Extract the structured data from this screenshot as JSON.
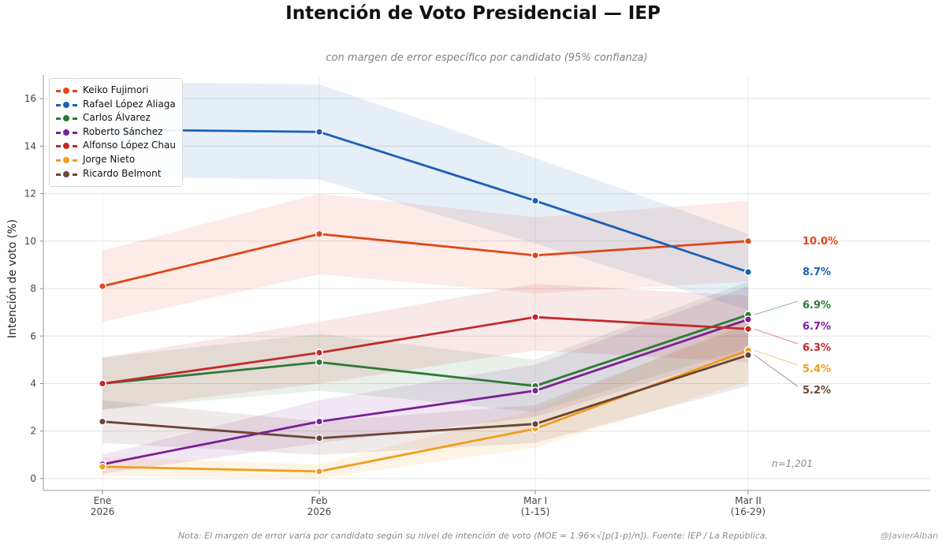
{
  "chart_data": {
    "type": "line",
    "title": "Intención de Voto Presidencial — IEP",
    "subtitle": "con margen de error específico por candidato (95% confianza)",
    "ylabel": "Intención de voto (%)",
    "xlabel": "",
    "ylim": [
      -0.5,
      17
    ],
    "yticks": [
      0,
      2,
      4,
      6,
      8,
      10,
      12,
      14,
      16
    ],
    "grid": true,
    "legend_position": "top-left",
    "categories": [
      {
        "line1": "Ene",
        "line2": "2026"
      },
      {
        "line1": "Feb",
        "line2": "2026"
      },
      {
        "line1": "Mar I",
        "line2": "(1-15)"
      },
      {
        "line1": "Mar II",
        "line2": "(16-29)"
      }
    ],
    "sample_size": 1201,
    "sample_label": "n=1,201",
    "series": [
      {
        "name": "Keiko Fujimori",
        "color": "#e0461a",
        "values": [
          8.1,
          10.3,
          9.4,
          10.0
        ],
        "moe": [
          1.5,
          1.7,
          1.6,
          1.7
        ],
        "end_label": "10.0%"
      },
      {
        "name": "Rafael López Aliaga",
        "color": "#1a60b5",
        "values": [
          14.7,
          14.6,
          11.7,
          8.7
        ],
        "moe": [
          2.0,
          2.0,
          1.8,
          1.6
        ],
        "end_label": "8.7%"
      },
      {
        "name": "Carlos Álvarez",
        "color": "#2c7a35",
        "values": [
          4.0,
          4.9,
          3.9,
          6.9
        ],
        "moe": [
          1.1,
          1.2,
          1.1,
          1.4
        ],
        "end_label": "6.9%"
      },
      {
        "name": "Roberto Sánchez",
        "color": "#7b1f98",
        "values": [
          0.6,
          2.4,
          3.7,
          6.7
        ],
        "moe": [
          0.4,
          0.9,
          1.1,
          1.4
        ],
        "end_label": "6.7%"
      },
      {
        "name": "Alfonso López Chau",
        "color": "#c22a2a",
        "values": [
          4.0,
          5.3,
          6.8,
          6.3
        ],
        "moe": [
          1.1,
          1.3,
          1.4,
          1.4
        ],
        "end_label": "6.3%"
      },
      {
        "name": "Jorge Nieto",
        "color": "#f09d1e",
        "values": [
          0.5,
          0.3,
          2.1,
          5.4
        ],
        "moe": [
          0.4,
          0.3,
          0.8,
          1.3
        ],
        "end_label": "5.4%"
      },
      {
        "name": "Ricardo Belmont",
        "color": "#6b4434",
        "values": [
          2.4,
          1.7,
          2.3,
          5.2
        ],
        "moe": [
          0.9,
          0.7,
          0.8,
          1.3
        ],
        "end_label": "5.2%"
      }
    ],
    "footnote": "Nota: El margen de error varía por candidato según su nivel de intención de voto (MOE = 1.96×√[p(1-p)/n]). Fuente: IEP / La República.",
    "credit": "@JavierAlban"
  }
}
